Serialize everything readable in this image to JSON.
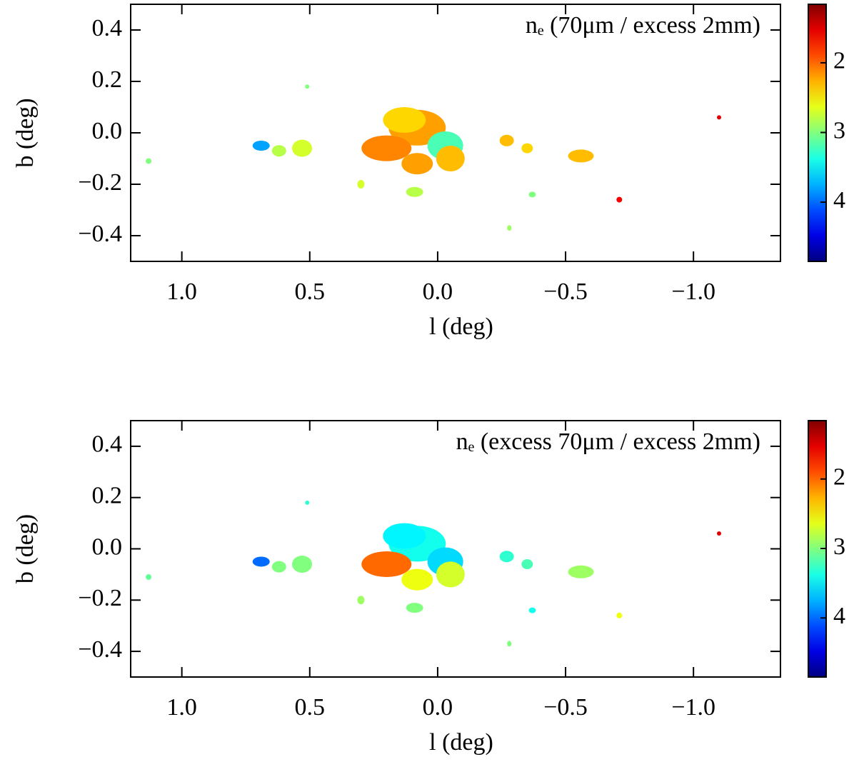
{
  "chart_data": [
    {
      "type": "map",
      "title": "nₑ (70μm / excess 2mm)",
      "xlabel": "l (deg)",
      "ylabel": "b (deg)",
      "xlim": [
        1.2,
        -1.34
      ],
      "ylim": [
        -0.5,
        0.5
      ],
      "xticks": [
        {
          "value": 1.0,
          "label": "1.0"
        },
        {
          "value": 0.5,
          "label": "0.5"
        },
        {
          "value": 0,
          "label": "0.0"
        },
        {
          "value": -0.5,
          "label": "−0.5"
        },
        {
          "value": -1.0,
          "label": "−1.0"
        }
      ],
      "yticks": [
        {
          "value": 0.4,
          "label": "0.4"
        },
        {
          "value": 0.2,
          "label": "0.2"
        },
        {
          "value": 0,
          "label": "0.0"
        },
        {
          "value": -0.2,
          "label": "−0.2"
        },
        {
          "value": -0.4,
          "label": "−0.4"
        }
      ],
      "clim": [
        1.16,
        4.85
      ],
      "cticks": [
        2,
        3,
        4
      ],
      "colormap": "jet-reversed",
      "x": [
        0.69,
        0.62,
        0.53,
        0.51,
        1.13,
        0.3,
        0.08,
        0.13,
        0.2,
        -0.03,
        -0.05,
        0.08,
        0.09,
        -0.27,
        -0.35,
        -0.37,
        -0.56,
        -0.28,
        -0.71,
        -1.1
      ],
      "y": [
        -0.05,
        -0.07,
        -0.06,
        0.18,
        -0.11,
        -0.2,
        0.02,
        0.05,
        -0.06,
        -0.05,
        -0.1,
        -0.12,
        -0.23,
        -0.03,
        -0.06,
        -0.24,
        -0.09,
        -0.37,
        -0.26,
        0.06
      ],
      "values": [
        3.8,
        2.8,
        2.7,
        3.0,
        3.0,
        2.7,
        2.2,
        2.4,
        2.1,
        3.2,
        2.3,
        2.2,
        2.8,
        2.3,
        2.4,
        3.0,
        2.3,
        2.9,
        1.6,
        1.5
      ]
    },
    {
      "type": "map",
      "title": "nₑ (excess 70μm / excess 2mm)",
      "xlabel": "l (deg)",
      "ylabel": "b (deg)",
      "xlim": [
        1.2,
        -1.34
      ],
      "ylim": [
        -0.5,
        0.5
      ],
      "xticks": [
        {
          "value": 1.0,
          "label": "1.0"
        },
        {
          "value": 0.5,
          "label": "0.5"
        },
        {
          "value": 0,
          "label": "0.0"
        },
        {
          "value": -0.5,
          "label": "−0.5"
        },
        {
          "value": -1.0,
          "label": "−1.0"
        }
      ],
      "yticks": [
        {
          "value": 0.4,
          "label": "0.4"
        },
        {
          "value": 0.2,
          "label": "0.2"
        },
        {
          "value": 0,
          "label": "0.0"
        },
        {
          "value": -0.2,
          "label": "−0.2"
        },
        {
          "value": -0.4,
          "label": "−0.4"
        }
      ],
      "clim": [
        1.16,
        4.85
      ],
      "cticks": [
        2,
        3,
        4
      ],
      "colormap": "jet-reversed",
      "x": [
        0.69,
        0.62,
        0.53,
        0.51,
        1.13,
        0.3,
        0.08,
        0.13,
        0.2,
        -0.03,
        -0.05,
        0.08,
        0.09,
        -0.27,
        -0.35,
        -0.37,
        -0.56,
        -0.28,
        -0.71,
        -1.1
      ],
      "y": [
        -0.05,
        -0.07,
        -0.06,
        0.18,
        -0.11,
        -0.2,
        0.02,
        0.05,
        -0.06,
        -0.05,
        -0.1,
        -0.12,
        -0.23,
        -0.03,
        -0.06,
        -0.24,
        -0.09,
        -0.37,
        -0.26,
        0.06
      ],
      "values": [
        4.0,
        3.0,
        3.0,
        3.3,
        3.1,
        2.9,
        3.4,
        3.5,
        2.0,
        3.6,
        2.7,
        2.6,
        3.0,
        3.3,
        3.2,
        3.4,
        2.9,
        3.0,
        2.6,
        1.5
      ]
    }
  ]
}
